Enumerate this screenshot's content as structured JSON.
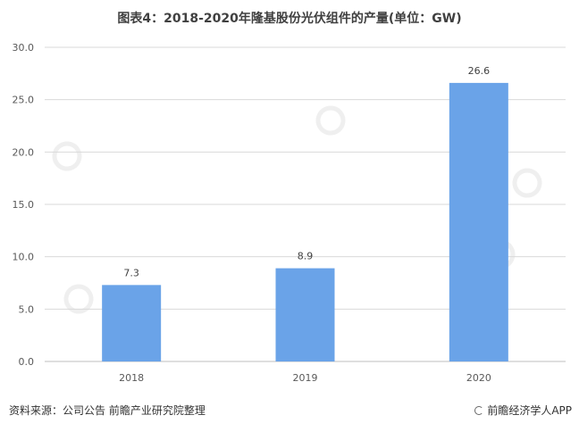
{
  "title": "图表4：2018-2020年隆基股份光伏组件的产量(单位：GW)",
  "source": "资料来源：公司公告 前瞻产业研究院整理",
  "brand": "前瞻经济学人APP",
  "watermark": "前瞻产业研究院",
  "colors": {
    "bar": "#6aa3e8",
    "grid": "#d9d9d9",
    "axis": "#bfbfbf"
  },
  "chart_data": {
    "type": "bar",
    "title": "图表4：2018-2020年隆基股份光伏组件的产量(单位：GW)",
    "categories": [
      "2018",
      "2019",
      "2020"
    ],
    "values": [
      7.3,
      8.9,
      26.6
    ],
    "data_labels": [
      "7.3",
      "8.9",
      "26.6"
    ],
    "ylim": [
      0,
      30
    ],
    "yticks": [
      "0.0",
      "5.0",
      "10.0",
      "15.0",
      "20.0",
      "25.0",
      "30.0"
    ],
    "ytick_values": [
      0,
      5,
      10,
      15,
      20,
      25,
      30
    ],
    "grid": true,
    "xlabel": "",
    "ylabel": ""
  }
}
